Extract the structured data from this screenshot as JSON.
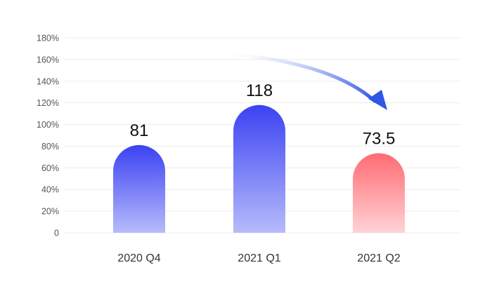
{
  "chart_data": {
    "type": "bar",
    "categories": [
      "2020 Q4",
      "2021 Q1",
      "2021 Q2"
    ],
    "values": [
      81,
      118,
      73.5
    ],
    "data_labels": [
      "81",
      "118",
      "73.5"
    ],
    "ylim": [
      0,
      180
    ],
    "yticks": [
      0,
      20,
      40,
      60,
      80,
      100,
      120,
      140,
      160,
      180
    ],
    "ytick_labels": [
      "0",
      "20%",
      "40%",
      "60%",
      "80%",
      "100%",
      "120%",
      "140%",
      "160%",
      "180%"
    ],
    "grid": true,
    "legend": "none",
    "bar_colors": {
      "blue_top": "#3A42F2",
      "blue_bottom": "#B7BBFB",
      "red_top": "#FF6B73",
      "red_bottom": "#FFD3D6"
    },
    "arrow_color": "#2F56E6"
  }
}
